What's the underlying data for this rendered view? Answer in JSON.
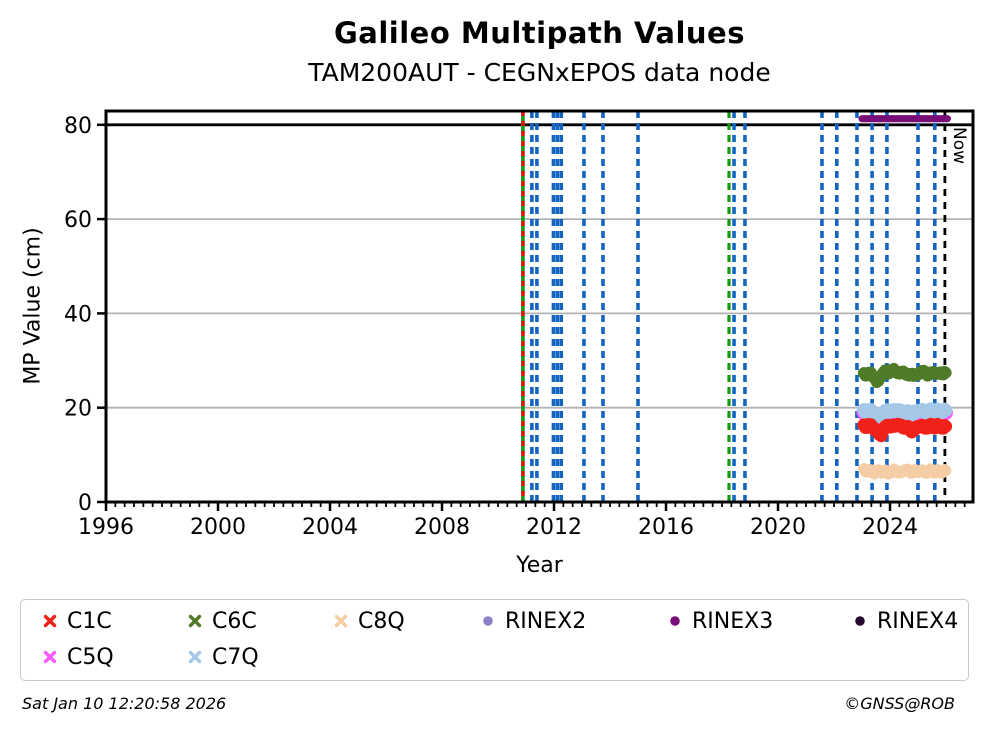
{
  "header": {
    "title": "Galileo Multipath Values",
    "subtitle": "TAM200AUT - CEGNxEPOS data node"
  },
  "footer": {
    "timestamp": "Sat Jan 10 12:20:58 2026",
    "credit": "©GNSS@ROB"
  },
  "colors": {
    "event_blue": "#1465c0",
    "event_green": "#119a12",
    "event_red": "#e31510",
    "now_line": "#000000",
    "grid": "#b3b3b3",
    "threshold": "#000000",
    "axis": "#000000"
  },
  "chart_data": {
    "type": "scatter",
    "title": "Galileo Multipath Values",
    "subtitle": "TAM200AUT - CEGNxEPOS data node",
    "xlabel": "Year",
    "ylabel": "MP Value (cm)",
    "xlim": [
      1996,
      2026.96
    ],
    "ylim": [
      0,
      82.9
    ],
    "x_ticks": [
      1996,
      2000,
      2004,
      2008,
      2012,
      2016,
      2020,
      2024
    ],
    "y_ticks": [
      0,
      20,
      40,
      60,
      80
    ],
    "grid_y": [
      20,
      40,
      60
    ],
    "threshold_line": {
      "y": 80
    },
    "now_line": {
      "x": 2025.96,
      "label": "Now"
    },
    "event_lines": [
      {
        "x": 2010.89,
        "style": "green-red"
      },
      {
        "x": 2011.21,
        "style": "blue"
      },
      {
        "x": 2011.39,
        "style": "blue"
      },
      {
        "x": 2011.98,
        "style": "blue"
      },
      {
        "x": 2012.12,
        "style": "blue"
      },
      {
        "x": 2012.26,
        "style": "blue"
      },
      {
        "x": 2013.07,
        "style": "blue"
      },
      {
        "x": 2013.75,
        "style": "blue"
      },
      {
        "x": 2015.0,
        "style": "blue"
      },
      {
        "x": 2018.25,
        "style": "green"
      },
      {
        "x": 2018.43,
        "style": "blue"
      },
      {
        "x": 2018.82,
        "style": "blue"
      },
      {
        "x": 2021.57,
        "style": "blue"
      },
      {
        "x": 2022.1,
        "style": "blue"
      },
      {
        "x": 2022.82,
        "style": "blue"
      },
      {
        "x": 2023.36,
        "style": "blue"
      },
      {
        "x": 2023.89,
        "style": "blue"
      },
      {
        "x": 2025.0,
        "style": "blue"
      },
      {
        "x": 2025.6,
        "style": "blue"
      }
    ],
    "series": [
      {
        "name": "C5Q",
        "color": "#fa5cfa",
        "marker": "x",
        "x_start": 2023.07,
        "x_end": 2025.98,
        "spread_cm": 3.2,
        "values": [
          18.9,
          18.6,
          19.0,
          18.7,
          18.3,
          17.8,
          17.6,
          18.3,
          18.8,
          19.0,
          18.6,
          18.9,
          19.1,
          18.7,
          18.5,
          18.8,
          18.4,
          18.1,
          18.5,
          18.7,
          19.0,
          18.8,
          18.5,
          18.9,
          19.1,
          18.7,
          18.9,
          18.6,
          18.8,
          19.0
        ]
      },
      {
        "name": "C7Q",
        "color": "#a5c8e9",
        "marker": "x",
        "x_start": 2023.05,
        "x_end": 2026.0,
        "spread_cm": 2.7,
        "values": [
          19.4,
          19.1,
          19.5,
          19.2,
          18.8,
          18.4,
          18.1,
          18.9,
          19.3,
          19.5,
          19.1,
          19.4,
          19.6,
          19.2,
          19.0,
          19.3,
          18.9,
          18.6,
          19.0,
          19.2,
          19.5,
          19.3,
          19.0,
          19.4,
          19.5,
          19.2,
          19.4,
          19.1,
          19.3,
          19.5
        ]
      },
      {
        "name": "C1C",
        "color": "#ef2118",
        "marker": "x",
        "x_start": 2023.05,
        "x_end": 2026.0,
        "spread_cm": 2.6,
        "values": [
          16.2,
          15.9,
          16.4,
          16.0,
          15.5,
          14.8,
          14.0,
          15.3,
          16.0,
          16.3,
          15.9,
          16.2,
          16.5,
          16.1,
          15.8,
          16.0,
          15.6,
          15.0,
          15.5,
          15.9,
          16.2,
          16.0,
          15.7,
          16.1,
          16.3,
          15.9,
          16.2,
          16.0,
          15.8,
          16.1
        ]
      },
      {
        "name": "C8Q",
        "color": "#f5cda4",
        "marker": "x",
        "x_start": 2023.05,
        "x_end": 2026.0,
        "spread_cm": 2.3,
        "values": [
          6.9,
          6.5,
          6.8,
          6.4,
          6.2,
          6.6,
          6.3,
          6.7,
          6.4,
          6.1,
          6.5,
          6.8,
          6.4,
          6.2,
          6.6,
          6.9,
          6.5,
          6.3,
          6.6,
          6.4,
          6.7,
          6.5,
          6.2,
          6.6,
          6.8,
          6.4,
          6.6,
          6.3,
          6.5,
          6.7
        ]
      },
      {
        "name": "C6C",
        "color": "#4f7a28",
        "marker": "x",
        "x_start": 2023.05,
        "x_end": 2026.0,
        "spread_cm": 2.4,
        "values": [
          27.2,
          26.9,
          27.4,
          27.0,
          26.4,
          25.1,
          26.7,
          27.5,
          27.8,
          27.3,
          27.9,
          28.0,
          27.5,
          27.2,
          27.7,
          27.1,
          26.8,
          27.3,
          26.7,
          27.1,
          27.5,
          27.7,
          27.2,
          26.9,
          27.4,
          27.6,
          27.1,
          27.4,
          27.2,
          27.5
        ]
      },
      {
        "name": "RINEX3",
        "color": "#780d78",
        "marker": "dot",
        "x_start": 2023.0,
        "x_end": 2026.05,
        "spread_cm": 1.5,
        "values": [
          81.3,
          81.3,
          81.3,
          81.3,
          81.3,
          81.3,
          81.3,
          81.3,
          81.3,
          81.3
        ]
      }
    ],
    "legend": [
      {
        "label": "C1C",
        "color": "#ef2118",
        "marker": "x"
      },
      {
        "label": "C6C",
        "color": "#4f7a28",
        "marker": "x"
      },
      {
        "label": "C8Q",
        "color": "#f5cda4",
        "marker": "x"
      },
      {
        "label": "RINEX2",
        "color": "#8d80c9",
        "marker": "dot"
      },
      {
        "label": "RINEX3",
        "color": "#780d78",
        "marker": "dot"
      },
      {
        "label": "RINEX4",
        "color": "#26092e",
        "marker": "dot"
      },
      {
        "label": "C5Q",
        "color": "#fa5cfa",
        "marker": "x"
      },
      {
        "label": "C7Q",
        "color": "#a5c8e9",
        "marker": "x"
      }
    ],
    "legend_position": "below"
  }
}
